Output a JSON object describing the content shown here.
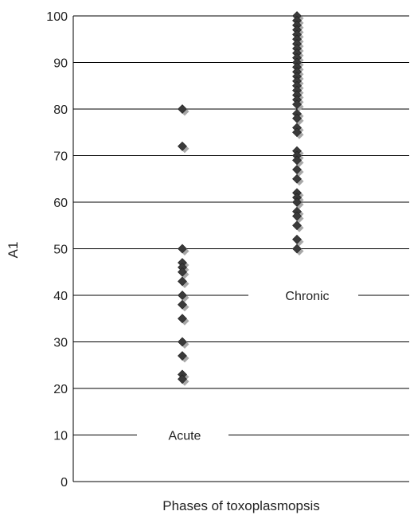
{
  "chart_data": {
    "type": "scatter",
    "title": "",
    "xlabel": "Phases of toxoplasmopsis",
    "ylabel": "A1",
    "ylim": [
      0,
      100
    ],
    "yticks": [
      0,
      10,
      20,
      30,
      40,
      50,
      60,
      70,
      80,
      90,
      100
    ],
    "grid": true,
    "marker": "diamond",
    "colors": {
      "marker": "#3a3a3a",
      "marker_shadow": "#a8a8a8",
      "grid": "#000000"
    },
    "series": [
      {
        "label": "Acute",
        "values": [
          80,
          72,
          50,
          47,
          46,
          45,
          43,
          40,
          38,
          35,
          30,
          27,
          23,
          22
        ]
      },
      {
        "label": "Chronic",
        "values": [
          100,
          99,
          98,
          97,
          96,
          95,
          94,
          93,
          92,
          91,
          90,
          89,
          88,
          87,
          86,
          85,
          84,
          83,
          82,
          81,
          79,
          78,
          76,
          75,
          71,
          70,
          69,
          67,
          65,
          62,
          61,
          60,
          58,
          57,
          55,
          52,
          50
        ]
      }
    ]
  }
}
